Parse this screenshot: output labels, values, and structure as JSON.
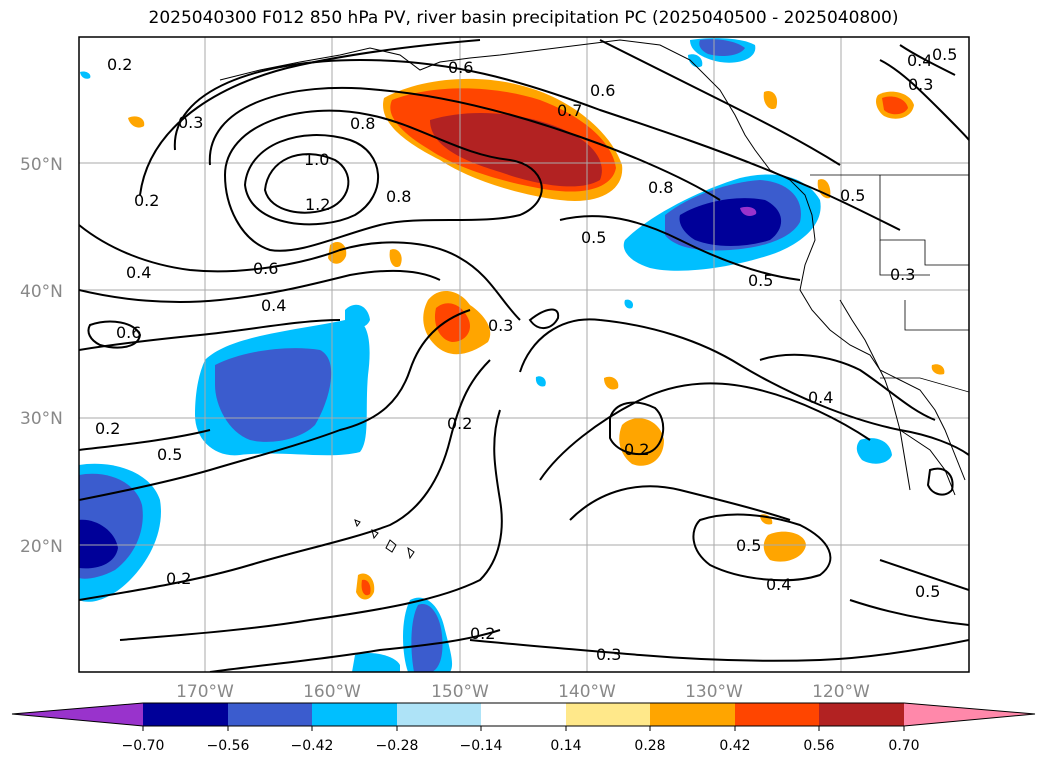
{
  "title": "2025040300 F012 850 hPa PV, river basin precipitation PC (2025040500 - 2025040800)",
  "latitude_labels": [
    "50°N",
    "40°N",
    "30°N",
    "20°N"
  ],
  "longitude_labels": [
    "170°W",
    "160°W",
    "150°W",
    "140°W",
    "130°W",
    "120°W"
  ],
  "contour_labels": [
    "0.2",
    "0.3",
    "0.8",
    "1.0",
    "1.2",
    "0.2",
    "0.8",
    "0.6",
    "0.7",
    "0.6",
    "0.4",
    "0.5",
    "0.4",
    "0.6",
    "0.6",
    "0.4",
    "0.3",
    "0.8",
    "0.5",
    "0.5",
    "0.5",
    "0.3",
    "0.2",
    "0.2",
    "0.3",
    "0.5",
    "0.2",
    "0.4",
    "0.5",
    "0.2",
    "0.2",
    "0.3",
    "0.4",
    "0.5"
  ],
  "colorbar": {
    "ticks": [
      "−0.70",
      "−0.56",
      "−0.42",
      "−0.28",
      "−0.14",
      "0.14",
      "0.28",
      "0.42",
      "0.56",
      "0.70"
    ],
    "colors": [
      "#9933cc",
      "#000099",
      "#3b5cce",
      "#00bfff",
      "#aee3f7",
      "#ffffff",
      "#ffe88a",
      "#ffa500",
      "#ff4500",
      "#b22222",
      "#ff88aa"
    ]
  }
}
